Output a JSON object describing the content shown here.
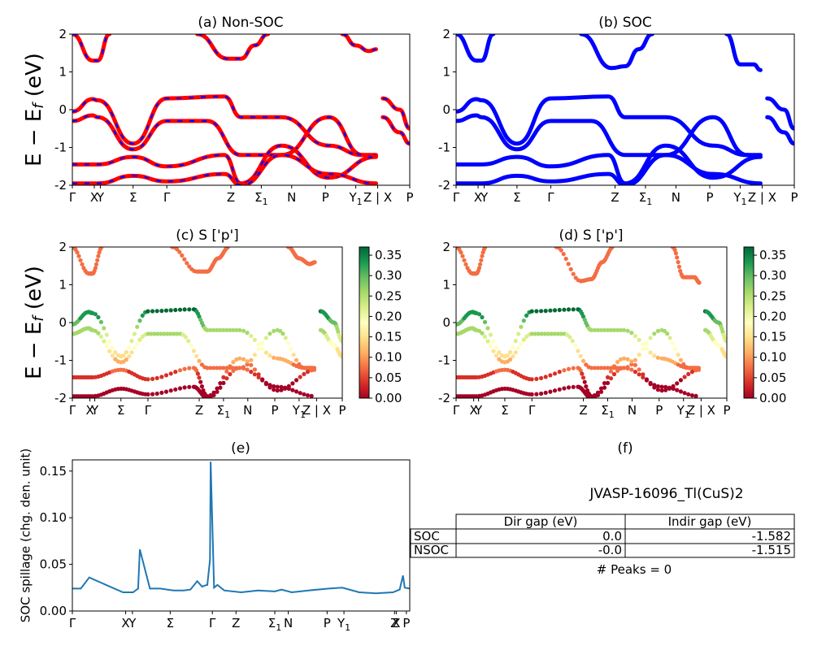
{
  "figure_id": "JVASP-16096_Tl(CuS)2",
  "colors": {
    "nonsoc_line": "#ff0000",
    "nonsoc_dash": "#0000ff",
    "soc_line": "#0000ff",
    "spillage": "#1f77b4"
  },
  "band_ylabel": "E - E_f (eV)",
  "chart_data": [
    {
      "id": "a",
      "type": "line",
      "title": "(a) Non-SOC",
      "ylim": [
        -2,
        2
      ],
      "yticks": [
        "-2",
        "-1",
        "0",
        "1",
        "2"
      ],
      "kpath": [
        "Γ",
        "X",
        "Y",
        "Σ",
        "Γ",
        "Z",
        "Σ1",
        "N",
        "P",
        "Y1",
        "Z | X",
        "P"
      ],
      "series": [
        {
          "x": [
            0,
            0.06,
            0.075,
            0.18,
            0.28,
            0.45,
            0.5,
            0.62,
            0.76,
            0.86,
            0.9
          ],
          "y": [
            -0.05,
            0.28,
            0.25,
            -0.9,
            0.3,
            0.35,
            -0.2,
            -0.2,
            -0.95,
            -1.2,
            -1.2
          ]
        },
        {
          "x": [
            0,
            0.06,
            0.075,
            0.18,
            0.28,
            0.4,
            0.5,
            0.62,
            0.76,
            0.86,
            0.9
          ],
          "y": [
            -0.3,
            -0.15,
            -0.2,
            -1.05,
            -0.3,
            -0.3,
            -1.2,
            -1.2,
            -0.2,
            -1.2,
            -1.25
          ]
        },
        {
          "x": [
            0,
            0.075,
            0.18,
            0.28,
            0.45,
            0.5,
            0.62,
            0.76,
            0.9
          ],
          "y": [
            -1.45,
            -1.45,
            -1.25,
            -1.5,
            -1.2,
            -1.95,
            -0.95,
            -1.8,
            -1.25
          ]
        },
        {
          "x": [
            0,
            0.075,
            0.18,
            0.28,
            0.45,
            0.5,
            0.62,
            0.76,
            0.9
          ],
          "y": [
            -1.95,
            -1.95,
            -1.75,
            -1.9,
            -1.7,
            -2.0,
            -1.2,
            -1.7,
            -1.95
          ]
        },
        {
          "x": [
            0,
            0.06,
            0.075,
            0.11
          ],
          "y": [
            2.0,
            1.3,
            1.3,
            2.0
          ]
        },
        {
          "x": [
            0.37,
            0.46,
            0.5,
            0.54,
            0.58
          ],
          "y": [
            2.0,
            1.35,
            1.35,
            1.7,
            2.0
          ]
        },
        {
          "x": [
            0.8,
            0.84,
            0.88,
            0.9
          ],
          "y": [
            2.0,
            1.7,
            1.55,
            1.6
          ]
        },
        {
          "x": [
            0.92,
            0.97,
            1.0
          ],
          "y": [
            0.3,
            0.0,
            -0.5
          ]
        },
        {
          "x": [
            0.92,
            0.97,
            1.0
          ],
          "y": [
            -0.2,
            -0.6,
            -0.9
          ]
        }
      ]
    },
    {
      "id": "b",
      "type": "line",
      "title": "(b) SOC",
      "ylim": [
        -2,
        2
      ],
      "yticks": [
        "-2",
        "-1",
        "0",
        "1",
        "2"
      ],
      "kpath": [
        "Γ",
        "X",
        "Y",
        "Σ",
        "Γ",
        "Z",
        "Σ1",
        "N",
        "P",
        "Y1",
        "Z | X",
        "P"
      ],
      "series": [
        {
          "x": [
            0,
            0.06,
            0.075,
            0.18,
            0.28,
            0.45,
            0.5,
            0.62,
            0.76,
            0.86,
            0.9
          ],
          "y": [
            -0.05,
            0.28,
            0.25,
            -0.9,
            0.3,
            0.35,
            -0.2,
            -0.2,
            -0.95,
            -1.2,
            -1.2
          ]
        },
        {
          "x": [
            0,
            0.06,
            0.075,
            0.18,
            0.28,
            0.4,
            0.5,
            0.62,
            0.76,
            0.86,
            0.9
          ],
          "y": [
            -0.3,
            -0.15,
            -0.2,
            -1.05,
            -0.3,
            -0.3,
            -1.2,
            -1.2,
            -0.2,
            -1.2,
            -1.25
          ]
        },
        {
          "x": [
            0,
            0.075,
            0.18,
            0.28,
            0.45,
            0.5,
            0.62,
            0.76,
            0.9
          ],
          "y": [
            -1.45,
            -1.45,
            -1.25,
            -1.5,
            -1.2,
            -1.95,
            -0.95,
            -1.8,
            -1.25
          ]
        },
        {
          "x": [
            0,
            0.075,
            0.18,
            0.28,
            0.45,
            0.5,
            0.62,
            0.76,
            0.9
          ],
          "y": [
            -1.95,
            -1.95,
            -1.75,
            -1.9,
            -1.7,
            -2.0,
            -1.2,
            -1.7,
            -1.95
          ]
        },
        {
          "x": [
            0,
            0.06,
            0.075,
            0.11
          ],
          "y": [
            2.0,
            1.3,
            1.3,
            2.0
          ]
        },
        {
          "x": [
            0.37,
            0.46,
            0.5,
            0.54,
            0.58
          ],
          "y": [
            2.0,
            1.1,
            1.15,
            1.6,
            2.0
          ]
        },
        {
          "x": [
            0.8,
            0.84,
            0.88,
            0.9
          ],
          "y": [
            2.0,
            1.2,
            1.2,
            1.05
          ]
        },
        {
          "x": [
            0.92,
            0.97,
            1.0
          ],
          "y": [
            0.3,
            0.0,
            -0.5
          ]
        },
        {
          "x": [
            0.92,
            0.97,
            1.0
          ],
          "y": [
            -0.2,
            -0.6,
            -0.9
          ]
        }
      ]
    },
    {
      "id": "c",
      "type": "scatter",
      "title": "(c)  S ['p']",
      "ylim": [
        -2,
        2
      ],
      "yticks": [
        "-2",
        "-1",
        "0",
        "1",
        "2"
      ],
      "kpath": [
        "Γ",
        "X",
        "Y",
        "Σ",
        "Γ",
        "Z",
        "Σ1",
        "N",
        "P",
        "Y1",
        "Z | X",
        "P"
      ],
      "colorbar": {
        "range": [
          0.0,
          0.37
        ],
        "ticks": [
          "0.00",
          "0.05",
          "0.10",
          "0.15",
          "0.20",
          "0.25",
          "0.30",
          "0.35"
        ]
      }
    },
    {
      "id": "d",
      "type": "scatter",
      "title": "(d) S ['p']",
      "ylim": [
        -2,
        2
      ],
      "yticks": [
        "-2",
        "-1",
        "0",
        "1",
        "2"
      ],
      "kpath": [
        "Γ",
        "X",
        "Y",
        "Σ",
        "Γ",
        "Z",
        "Σ1",
        "N",
        "P",
        "Y1",
        "Z | X",
        "P"
      ],
      "colorbar": {
        "range": [
          0.0,
          0.37
        ],
        "ticks": [
          "0.00",
          "0.05",
          "0.10",
          "0.15",
          "0.20",
          "0.25",
          "0.30",
          "0.35"
        ]
      }
    },
    {
      "id": "e",
      "type": "line",
      "title": "(e)",
      "ylabel": "SOC spillage (chg. den. unit)",
      "ylim": [
        0,
        0.162
      ],
      "yticks": [
        "0.00",
        "0.05",
        "0.10",
        "0.15"
      ],
      "kpath": [
        "Γ",
        "X",
        "Y",
        "Σ",
        "Γ",
        "Z",
        "Σ1",
        "N",
        "P",
        "Y1",
        "Z",
        "X",
        "P"
      ],
      "series": [
        {
          "x": [
            0,
            0.025,
            0.05,
            0.1,
            0.15,
            0.18,
            0.195,
            0.2,
            0.23,
            0.26,
            0.3,
            0.33,
            0.35,
            0.37,
            0.38,
            0.385,
            0.39,
            0.4,
            0.408,
            0.41,
            0.42,
            0.43,
            0.45,
            0.5,
            0.55,
            0.6,
            0.62,
            0.65,
            0.7,
            0.76,
            0.8,
            0.85,
            0.9,
            0.95,
            0.97,
            0.98,
            0.985,
            1.0
          ],
          "y": [
            0.024,
            0.024,
            0.036,
            0.028,
            0.02,
            0.02,
            0.024,
            0.066,
            0.024,
            0.024,
            0.022,
            0.022,
            0.023,
            0.032,
            0.028,
            0.026,
            0.027,
            0.028,
            0.055,
            0.16,
            0.025,
            0.028,
            0.022,
            0.02,
            0.022,
            0.021,
            0.023,
            0.02,
            0.022,
            0.024,
            0.025,
            0.02,
            0.019,
            0.02,
            0.023,
            0.038,
            0.025,
            0.024
          ]
        }
      ]
    }
  ],
  "panel_f": {
    "title": "(f)",
    "header": "JVASP-16096_Tl(CuS)2",
    "table": {
      "columns": [
        "Dir gap (eV)",
        "Indir gap (eV)"
      ],
      "rows": [
        {
          "label": "SOC",
          "dir": "0.0",
          "indir": "-1.582"
        },
        {
          "label": "NSOC",
          "dir": "-0.0",
          "indir": "-1.515"
        }
      ]
    },
    "peaks": "# Peaks = 0"
  }
}
